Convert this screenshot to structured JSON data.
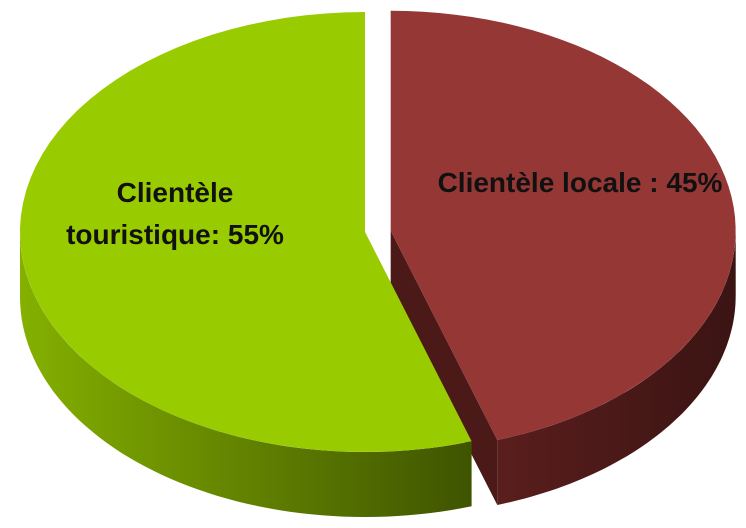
{
  "chart_data": {
    "type": "pie",
    "categories": [
      "Clientèle locale :",
      "Clientèle touristique:"
    ],
    "values": [
      45,
      55
    ],
    "value_labels": [
      "45%",
      "55%"
    ],
    "colors": [
      "#953735",
      "#99cc00"
    ]
  }
}
